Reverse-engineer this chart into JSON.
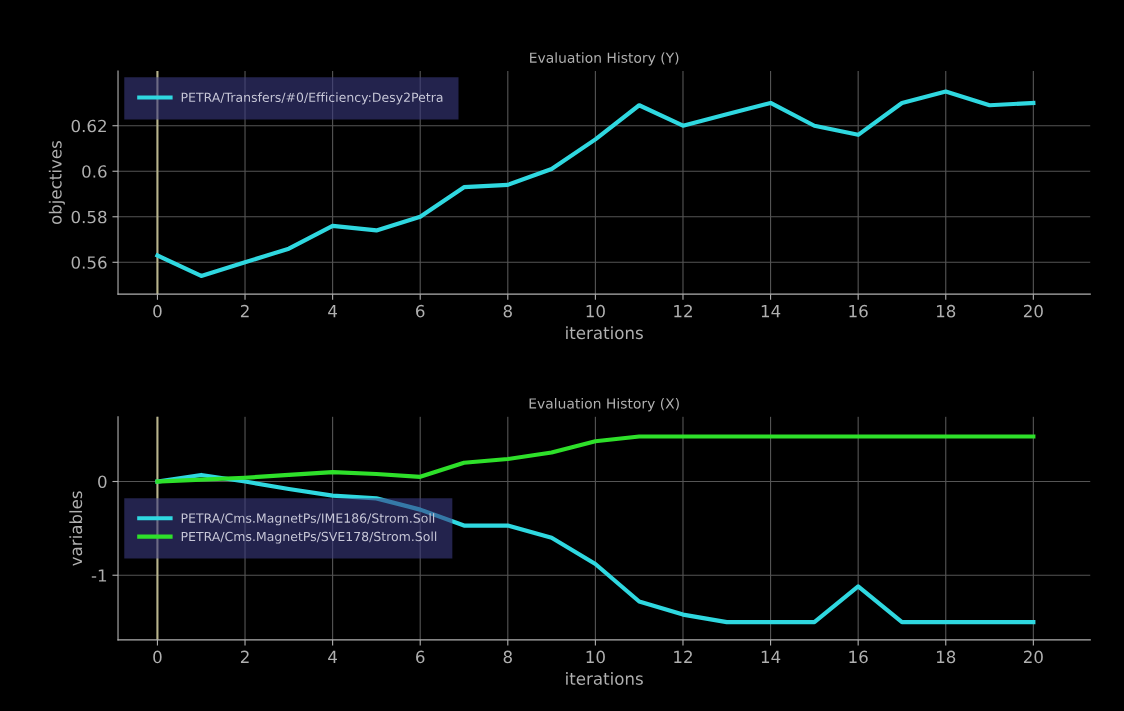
{
  "chart_data": [
    {
      "type": "line",
      "title": "Evaluation History (Y)",
      "xlabel": "iterations",
      "ylabel": "objectives",
      "x": [
        0,
        1,
        2,
        3,
        4,
        5,
        6,
        7,
        8,
        9,
        10,
        11,
        12,
        13,
        14,
        15,
        16,
        17,
        18,
        19,
        20
      ],
      "series": [
        {
          "name": "PETRA/Transfers/#0/Efficiency:Desy2Petra",
          "color": "#2fd8e0",
          "values": [
            0.563,
            0.554,
            0.56,
            0.566,
            0.576,
            0.574,
            0.58,
            0.593,
            0.594,
            0.601,
            0.614,
            0.629,
            0.62,
            0.625,
            0.63,
            0.62,
            0.616,
            0.63,
            0.635,
            0.629,
            0.63
          ]
        }
      ],
      "xlim": [
        -0.9,
        21.3
      ],
      "xticks": [
        0,
        2,
        4,
        6,
        8,
        10,
        12,
        14,
        16,
        18,
        20
      ],
      "ylim": [
        0.546,
        0.644
      ],
      "yticks": [
        0.56,
        0.58,
        0.6,
        0.62
      ],
      "ref_lines": [
        {
          "axis": "x",
          "value": 0,
          "color": "#b8b48c"
        }
      ],
      "grid": true,
      "legend": "top left"
    },
    {
      "type": "line",
      "title": "Evaluation History (X)",
      "xlabel": "iterations",
      "ylabel": "variables",
      "x": [
        0,
        1,
        2,
        3,
        4,
        5,
        6,
        7,
        8,
        9,
        10,
        11,
        12,
        13,
        14,
        15,
        16,
        17,
        18,
        19,
        20
      ],
      "series": [
        {
          "name": "PETRA/Cms.MagnetPs/IME186/Strom.Soll",
          "color": "#2fd8e0",
          "values": [
            0,
            0.07,
            0.0,
            -0.08,
            -0.15,
            -0.18,
            -0.3,
            -0.47,
            -0.47,
            -0.6,
            -0.88,
            -1.28,
            -1.42,
            -1.5,
            -1.5,
            -1.5,
            -1.12,
            -1.5,
            -1.5,
            -1.5,
            -1.5
          ]
        },
        {
          "name": "PETRA/Cms.MagnetPs/SVE178/Strom.Soll",
          "color": "#2ee02a",
          "values": [
            0,
            0.02,
            0.04,
            0.07,
            0.1,
            0.08,
            0.05,
            0.2,
            0.24,
            0.31,
            0.43,
            0.48,
            0.48,
            0.48,
            0.48,
            0.48,
            0.48,
            0.48,
            0.48,
            0.48,
            0.48
          ]
        }
      ],
      "xlim": [
        -0.9,
        21.3
      ],
      "xticks": [
        0,
        2,
        4,
        6,
        8,
        10,
        12,
        14,
        16,
        18,
        20
      ],
      "ylim": [
        -1.69,
        0.69
      ],
      "yticks": [
        -1,
        0
      ],
      "ref_lines": [
        {
          "axis": "x",
          "value": 0,
          "color": "#b8b48c"
        }
      ],
      "grid": true,
      "legend": "left"
    }
  ]
}
